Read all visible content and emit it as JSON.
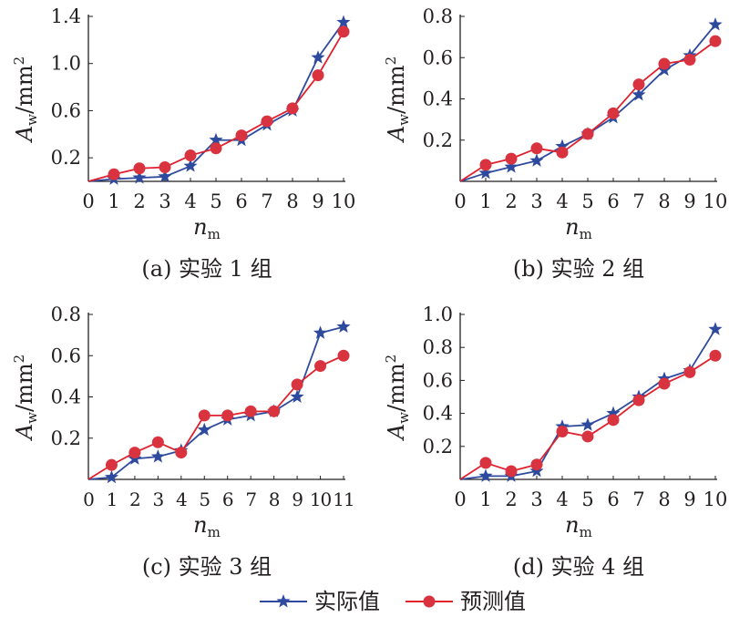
{
  "figure": {
    "legend": {
      "actual_label": "实际值",
      "predicted_label": "预测值"
    }
  },
  "colors": {
    "actual": "#2e4a9e",
    "predicted": "#d93340",
    "predicted_stroke": "#e0212e",
    "axis": "#231f20"
  },
  "chart_data": [
    {
      "type": "line",
      "caption": "(a) 实验 1 组",
      "xlabel": "n",
      "xlabel_sub": "m",
      "ylabel": "A",
      "ylabel_sub": "w",
      "ylabel_unit": "/mm",
      "ylabel_sup": "2",
      "xlim": [
        0,
        10
      ],
      "ylim": [
        0,
        1.4
      ],
      "yticks": [
        "0.2",
        "0.6",
        "1.0",
        "1.4"
      ],
      "ytick_values": [
        0.2,
        0.6,
        1.0,
        1.4
      ],
      "xticks": [
        "0",
        "1",
        "2",
        "3",
        "4",
        "5",
        "6",
        "7",
        "8",
        "9",
        "10"
      ],
      "x": [
        0,
        1,
        2,
        3,
        4,
        5,
        6,
        7,
        8,
        9,
        10
      ],
      "series": [
        {
          "name": "实际值",
          "marker": "star",
          "values": [
            0.0,
            0.02,
            0.03,
            0.04,
            0.13,
            0.35,
            0.35,
            0.48,
            0.6,
            1.05,
            1.35
          ]
        },
        {
          "name": "预测值",
          "marker": "circle",
          "values": [
            0.0,
            0.06,
            0.11,
            0.12,
            0.22,
            0.28,
            0.39,
            0.51,
            0.62,
            0.9,
            1.27
          ]
        }
      ]
    },
    {
      "type": "line",
      "caption": "(b) 实验 2 组",
      "xlabel": "n",
      "xlabel_sub": "m",
      "ylabel": "A",
      "ylabel_sub": "w",
      "ylabel_unit": "/mm",
      "ylabel_sup": "2",
      "xlim": [
        0,
        10
      ],
      "ylim": [
        0,
        0.8
      ],
      "yticks": [
        "0.2",
        "0.4",
        "0.6",
        "0.8"
      ],
      "ytick_values": [
        0.2,
        0.4,
        0.6,
        0.8
      ],
      "xticks": [
        "0",
        "1",
        "2",
        "3",
        "4",
        "5",
        "6",
        "7",
        "8",
        "9",
        "10"
      ],
      "x": [
        0,
        1,
        2,
        3,
        4,
        5,
        6,
        7,
        8,
        9,
        10
      ],
      "series": [
        {
          "name": "实际值",
          "marker": "star",
          "values": [
            0.0,
            0.04,
            0.07,
            0.1,
            0.17,
            0.23,
            0.31,
            0.42,
            0.54,
            0.61,
            0.76
          ]
        },
        {
          "name": "预测值",
          "marker": "circle",
          "values": [
            0.0,
            0.08,
            0.11,
            0.16,
            0.14,
            0.23,
            0.33,
            0.47,
            0.57,
            0.59,
            0.68
          ]
        }
      ]
    },
    {
      "type": "line",
      "caption": "(c) 实验 3 组",
      "xlabel": "n",
      "xlabel_sub": "m",
      "ylabel": "A",
      "ylabel_sub": "w",
      "ylabel_unit": "/mm",
      "ylabel_sup": "2",
      "xlim": [
        0,
        11
      ],
      "ylim": [
        0,
        0.8
      ],
      "yticks": [
        "0.2",
        "0.4",
        "0.6",
        "0.8"
      ],
      "ytick_values": [
        0.2,
        0.4,
        0.6,
        0.8
      ],
      "xticks": [
        "0",
        "1",
        "2",
        "3",
        "4",
        "5",
        "6",
        "7",
        "8",
        "9",
        "10",
        "11"
      ],
      "x": [
        0,
        1,
        2,
        3,
        4,
        5,
        6,
        7,
        8,
        9,
        10,
        11
      ],
      "series": [
        {
          "name": "实际值",
          "marker": "star",
          "values": [
            0.0,
            0.01,
            0.1,
            0.11,
            0.14,
            0.24,
            0.29,
            0.31,
            0.33,
            0.4,
            0.71,
            0.74
          ]
        },
        {
          "name": "预测值",
          "marker": "circle",
          "values": [
            0.0,
            0.07,
            0.13,
            0.18,
            0.13,
            0.31,
            0.31,
            0.33,
            0.33,
            0.46,
            0.55,
            0.6
          ]
        }
      ]
    },
    {
      "type": "line",
      "caption": "(d) 实验 4 组",
      "xlabel": "n",
      "xlabel_sub": "m",
      "ylabel": "A",
      "ylabel_sub": "w",
      "ylabel_unit": "/mm",
      "ylabel_sup": "2",
      "xlim": [
        0,
        10
      ],
      "ylim": [
        0,
        1.0
      ],
      "yticks": [
        "0.2",
        "0.4",
        "0.6",
        "0.8",
        "1.0"
      ],
      "ytick_values": [
        0.2,
        0.4,
        0.6,
        0.8,
        1.0
      ],
      "xticks": [
        "0",
        "1",
        "2",
        "3",
        "4",
        "5",
        "6",
        "7",
        "8",
        "9",
        "10"
      ],
      "x": [
        0,
        1,
        2,
        3,
        4,
        5,
        6,
        7,
        8,
        9,
        10
      ],
      "series": [
        {
          "name": "实际值",
          "marker": "star",
          "values": [
            0.0,
            0.02,
            0.02,
            0.05,
            0.32,
            0.33,
            0.4,
            0.5,
            0.61,
            0.66,
            0.91
          ]
        },
        {
          "name": "预测值",
          "marker": "circle",
          "values": [
            0.0,
            0.1,
            0.05,
            0.09,
            0.29,
            0.26,
            0.36,
            0.48,
            0.58,
            0.65,
            0.75
          ]
        }
      ]
    }
  ]
}
